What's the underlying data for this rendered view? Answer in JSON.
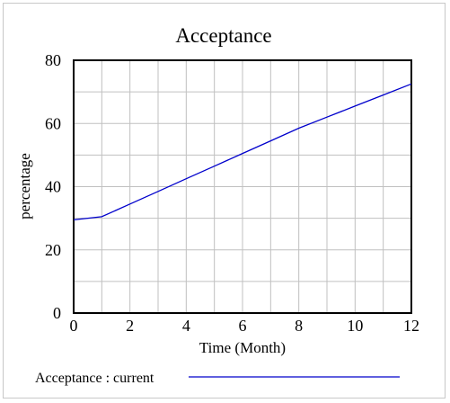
{
  "chart_data": {
    "type": "line",
    "title": "Acceptance",
    "xlabel": "Time (Month)",
    "ylabel": "percentage",
    "xlim": [
      0,
      12
    ],
    "ylim": [
      0,
      80
    ],
    "x_ticks": [
      0,
      2,
      4,
      6,
      8,
      10,
      12
    ],
    "y_ticks": [
      0,
      20,
      40,
      60,
      80
    ],
    "x_tick_labels": [
      "0",
      "2",
      "4",
      "6",
      "8",
      "10",
      "12"
    ],
    "y_tick_labels": [
      "0",
      "20",
      "40",
      "60",
      "80"
    ],
    "grid": true,
    "legend_position": "bottom",
    "series": [
      {
        "name": "Acceptance : current",
        "color": "#0000cc",
        "x": [
          0,
          1,
          2,
          3,
          4,
          5,
          6,
          7,
          8,
          9,
          10,
          11,
          12
        ],
        "y": [
          29.5,
          30.5,
          34.5,
          38.5,
          42.5,
          46.5,
          50.5,
          54.5,
          58.5,
          62.0,
          65.5,
          69.0,
          72.5
        ]
      }
    ]
  }
}
